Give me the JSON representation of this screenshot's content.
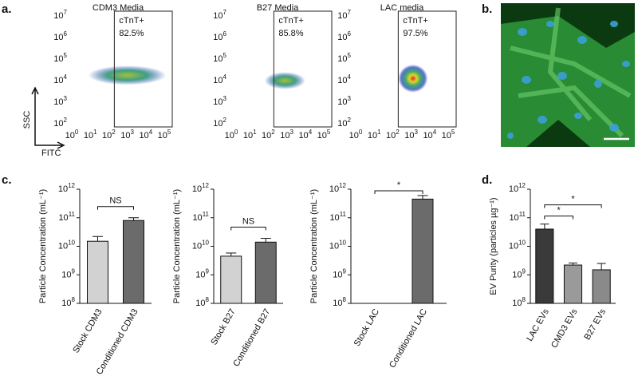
{
  "panel_labels": [
    "a.",
    "b.",
    "c.",
    "d."
  ],
  "chart_data": [
    {
      "type": "scatter",
      "title": "CDM3 Media",
      "annotations": [
        "cTnT+",
        "82.5%"
      ],
      "xlabel": "FITC",
      "ylabel": "SSC",
      "log": true,
      "xlim": [
        1,
        100000
      ],
      "ylim": [
        100,
        10000000
      ],
      "xticks": [
        {
          "value": 1,
          "label": "10^0"
        },
        {
          "value": 10,
          "label": "10^1"
        },
        {
          "value": 100,
          "label": "10^2"
        },
        {
          "value": 1000,
          "label": "10^3"
        },
        {
          "value": 10000,
          "label": "10^4"
        },
        {
          "value": 100000,
          "label": "10^5"
        }
      ],
      "yticks": [
        {
          "value": 100,
          "label": "10^2"
        },
        {
          "value": 1000,
          "label": "10^3"
        },
        {
          "value": 10000,
          "label": "10^4"
        },
        {
          "value": 100000,
          "label": "10^5"
        },
        {
          "value": 1000000,
          "label": "10^6"
        },
        {
          "value": 10000000,
          "label": "10^7"
        }
      ]
    },
    {
      "type": "scatter",
      "title": "B27 Media",
      "annotations": [
        "cTnT+",
        "85.8%"
      ],
      "log": true,
      "xlim": [
        1,
        100000
      ],
      "ylim": [
        100,
        10000000
      ],
      "xticks": [
        {
          "value": 1,
          "label": "10^0"
        },
        {
          "value": 10,
          "label": "10^1"
        },
        {
          "value": 100,
          "label": "10^2"
        },
        {
          "value": 1000,
          "label": "10^3"
        },
        {
          "value": 10000,
          "label": "10^4"
        },
        {
          "value": 100000,
          "label": "10^5"
        }
      ],
      "yticks": [
        {
          "value": 100,
          "label": "10^2"
        },
        {
          "value": 1000,
          "label": "10^3"
        },
        {
          "value": 10000,
          "label": "10^4"
        },
        {
          "value": 100000,
          "label": "10^5"
        },
        {
          "value": 1000000,
          "label": "10^6"
        },
        {
          "value": 10000000,
          "label": "10^7"
        }
      ]
    },
    {
      "type": "scatter",
      "title": "LAC media",
      "annotations": [
        "cTnT+",
        "97.5%"
      ],
      "log": true,
      "xlim": [
        1,
        100000
      ],
      "ylim": [
        100,
        10000000
      ],
      "xticks": [
        {
          "value": 1,
          "label": "10^0"
        },
        {
          "value": 10,
          "label": "10^1"
        },
        {
          "value": 100,
          "label": "10^2"
        },
        {
          "value": 1000,
          "label": "10^3"
        },
        {
          "value": 10000,
          "label": "10^4"
        },
        {
          "value": 100000,
          "label": "10^5"
        }
      ],
      "yticks": [
        {
          "value": 100,
          "label": "10^2"
        },
        {
          "value": 1000,
          "label": "10^3"
        },
        {
          "value": 10000,
          "label": "10^4"
        },
        {
          "value": 100000,
          "label": "10^5"
        },
        {
          "value": 1000000,
          "label": "10^6"
        },
        {
          "value": 10000000,
          "label": "10^7"
        }
      ]
    },
    {
      "type": "bar",
      "ylabel": "Particle Concentration (mL⁻¹)",
      "log": true,
      "annotations": [
        "NS"
      ],
      "categories": [
        "Stock CDM3",
        "Conditioned CDM3"
      ],
      "values": [
        15000000000,
        80000000000
      ],
      "errors": [
        7000000000,
        20000000000
      ],
      "colors": [
        "#d2d2d2",
        "#6b6b6b"
      ],
      "ylim": [
        100000000,
        1000000000000
      ],
      "yticks": [
        {
          "value": 100000000,
          "label": "10^8"
        },
        {
          "value": 1000000000,
          "label": "10^9"
        },
        {
          "value": 10000000000,
          "label": "10^10"
        },
        {
          "value": 100000000000,
          "label": "10^11"
        },
        {
          "value": 1000000000000,
          "label": "10^12"
        }
      ]
    },
    {
      "type": "bar",
      "ylabel": "Particle Concentration (mL⁻¹)",
      "log": true,
      "annotations": [
        "NS"
      ],
      "categories": [
        "Stock B27",
        "Conditioned B27"
      ],
      "values": [
        4500000000,
        14000000000
      ],
      "errors": [
        1300000000,
        5000000000
      ],
      "colors": [
        "#d2d2d2",
        "#6b6b6b"
      ],
      "ylim": [
        100000000,
        1000000000000
      ],
      "yticks": [
        {
          "value": 100000000,
          "label": "10^8"
        },
        {
          "value": 1000000000,
          "label": "10^9"
        },
        {
          "value": 10000000000,
          "label": "10^10"
        },
        {
          "value": 100000000000,
          "label": "10^11"
        },
        {
          "value": 1000000000000,
          "label": "10^12"
        }
      ]
    },
    {
      "type": "bar",
      "ylabel": "Particle Concentration (mL⁻¹)",
      "log": true,
      "annotations": [
        "*"
      ],
      "categories": [
        "Stock LAC",
        "Conditioned LAC"
      ],
      "values": [
        null,
        450000000000
      ],
      "errors": [
        null,
        150000000000
      ],
      "colors": [
        "#d2d2d2",
        "#6b6b6b"
      ],
      "ylim": [
        100000000,
        1000000000000
      ],
      "yticks": [
        {
          "value": 100000000,
          "label": "10^8"
        },
        {
          "value": 1000000000,
          "label": "10^9"
        },
        {
          "value": 10000000000,
          "label": "10^10"
        },
        {
          "value": 100000000000,
          "label": "10^11"
        },
        {
          "value": 1000000000000,
          "label": "10^12"
        }
      ]
    },
    {
      "type": "bar",
      "ylabel": "EV Purity (particles µg⁻¹)",
      "log": true,
      "annotations": [
        "*",
        "*"
      ],
      "categories": [
        "LAC EVs",
        "CMD3 EVs",
        "B27 EVs"
      ],
      "values": [
        40000000000,
        2200000000,
        1500000000
      ],
      "errors": [
        20000000000,
        400000000,
        1000000000
      ],
      "colors": [
        "#3a3a3a",
        "#9a9a9a",
        "#8a8a8a"
      ],
      "ylim": [
        100000000,
        1000000000000
      ],
      "yticks": [
        {
          "value": 100000000,
          "label": "10^8"
        },
        {
          "value": 1000000000,
          "label": "10^9"
        },
        {
          "value": 10000000000,
          "label": "10^10"
        },
        {
          "value": 100000000000,
          "label": "10^11"
        },
        {
          "value": 1000000000000,
          "label": "10^12"
        }
      ]
    }
  ]
}
